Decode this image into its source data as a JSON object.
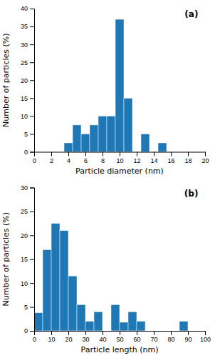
{
  "chart_data": [
    {
      "type": "bar",
      "title": "(a)",
      "x_label": "Particle diameter (nm)",
      "y_label": "Number of particles (%)",
      "xlim": [
        0,
        20
      ],
      "ylim": [
        0,
        40
      ],
      "xticks": [
        0,
        2,
        4,
        6,
        8,
        10,
        12,
        14,
        16,
        18,
        20
      ],
      "yticks": [
        0,
        5,
        10,
        15,
        20,
        25,
        30,
        35,
        40
      ],
      "x": [
        3.5,
        4.5,
        5.5,
        6.5,
        7.5,
        8.5,
        9.5,
        10.5,
        12.5,
        14.5
      ],
      "x_end": [
        4.5,
        5.5,
        6.5,
        7.5,
        8.5,
        9.5,
        10.5,
        11.5,
        13.5,
        15.5
      ],
      "values": [
        2.5,
        7.5,
        5.0,
        7.5,
        10.0,
        10.0,
        37.0,
        15.0,
        5.0,
        2.5
      ]
    },
    {
      "type": "bar",
      "title": "(b)",
      "x_label": "Particle length (nm)",
      "y_label": "Number of particles (%)",
      "xlim": [
        0,
        100
      ],
      "ylim": [
        0,
        30
      ],
      "xticks": [
        0,
        10,
        20,
        30,
        40,
        50,
        60,
        70,
        80,
        90,
        100
      ],
      "yticks": [
        0,
        5,
        10,
        15,
        20,
        25,
        30
      ],
      "x": [
        0,
        5,
        10,
        15,
        20,
        25,
        30,
        35,
        45,
        50,
        55,
        60,
        85
      ],
      "x_end": [
        5,
        10,
        15,
        20,
        25,
        30,
        35,
        40,
        50,
        55,
        60,
        65,
        90
      ],
      "values": [
        3.8,
        17.0,
        22.5,
        21.0,
        11.5,
        5.5,
        2.0,
        4.0,
        5.5,
        1.8,
        4.0,
        2.0,
        2.0
      ]
    }
  ]
}
